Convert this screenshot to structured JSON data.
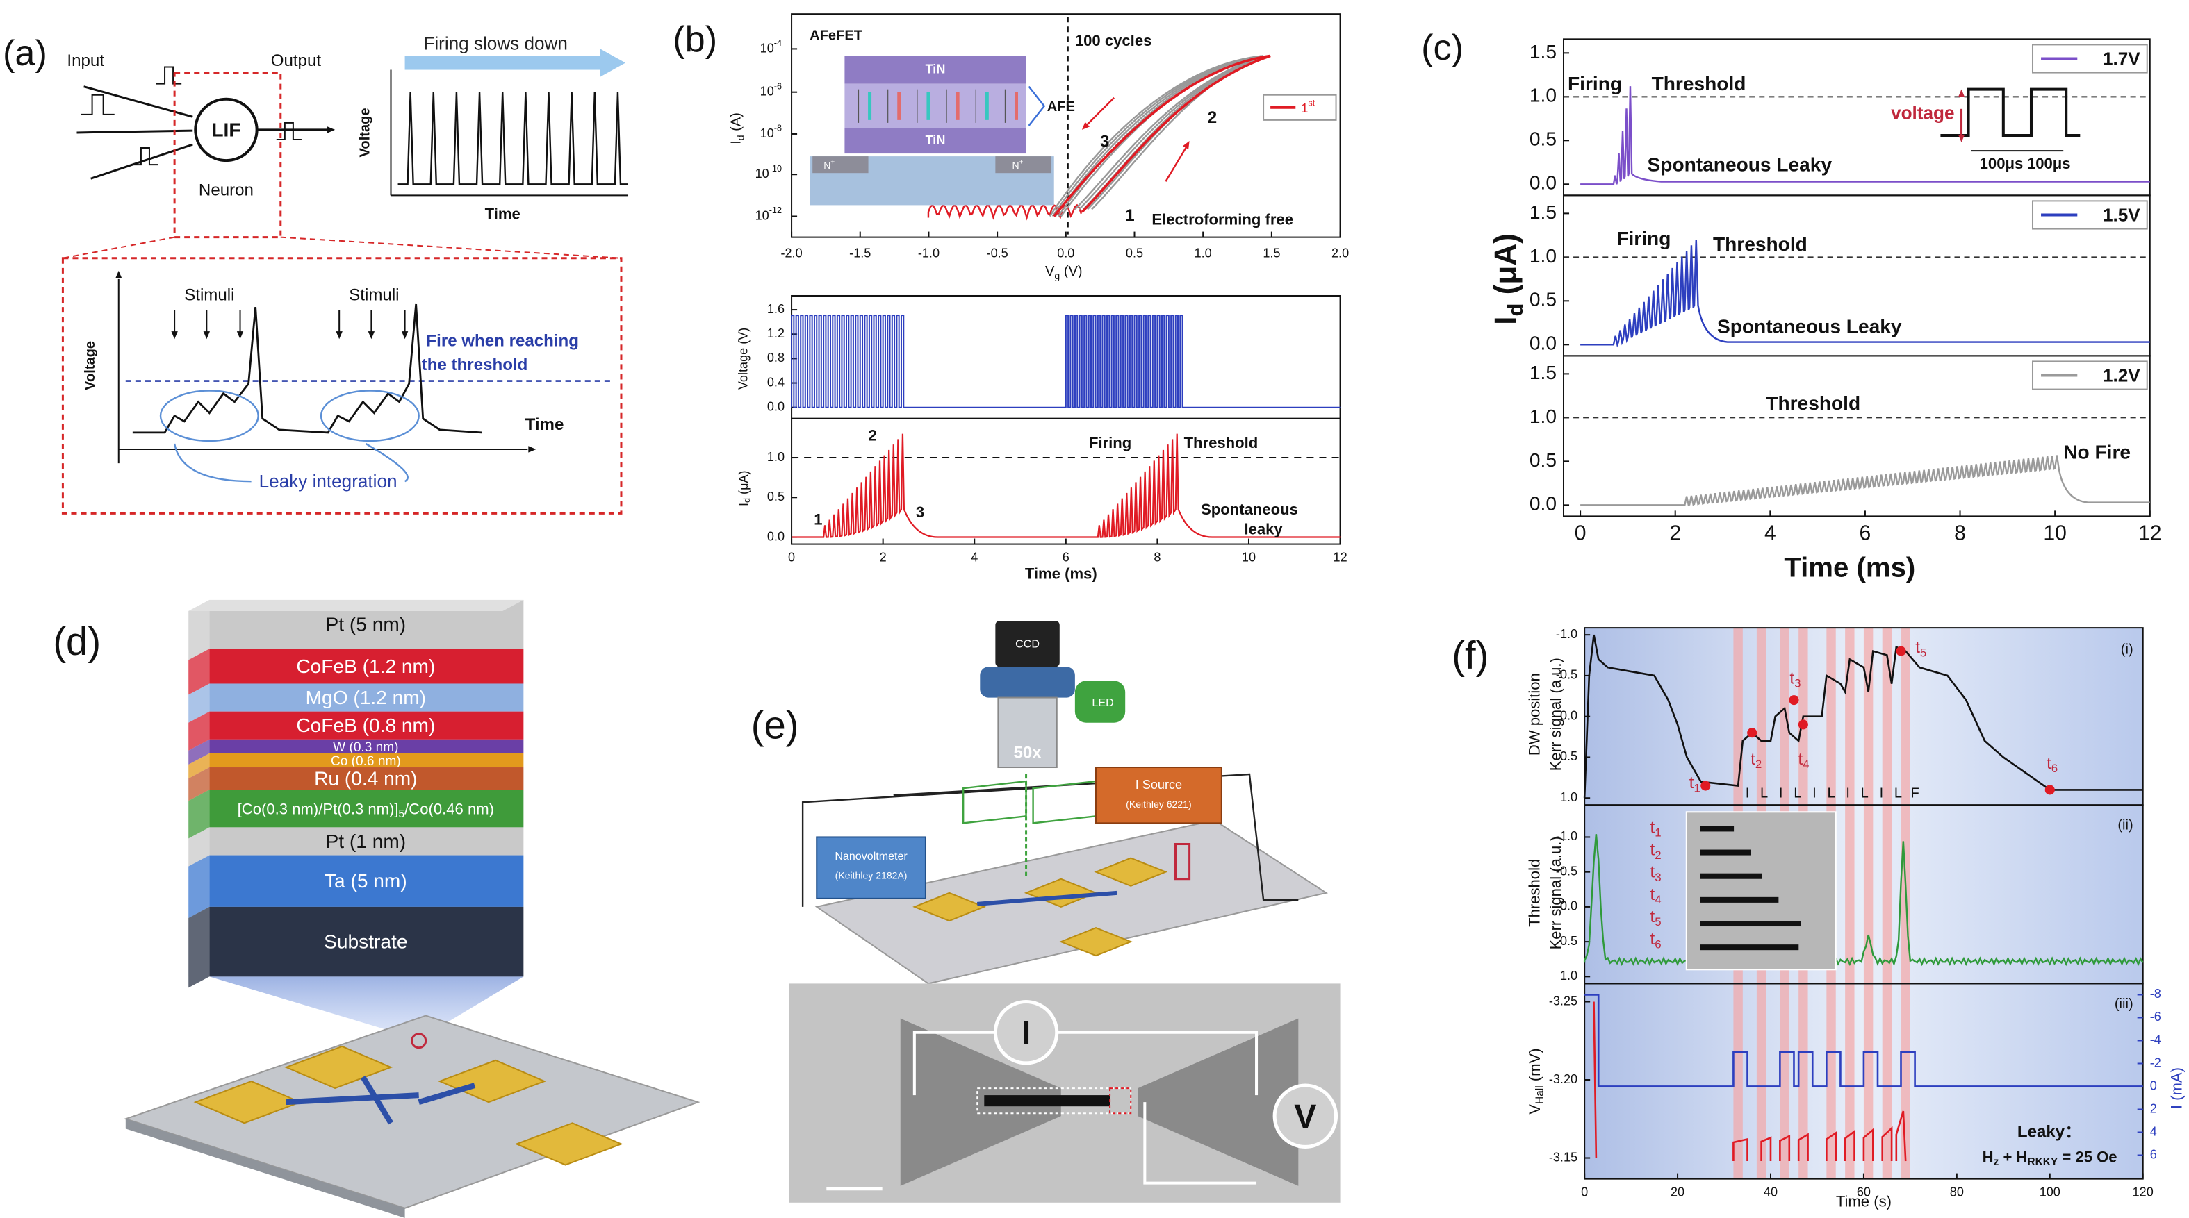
{
  "a": {
    "label": "(a)",
    "input": "Input",
    "output": "Output",
    "lif": "LIF",
    "neuron": "Neuron",
    "firing": "Firing slows down",
    "voltage": "Voltage",
    "time": "Time",
    "stimuli": [
      "Stimuli",
      "Stimuli"
    ],
    "fire": [
      "Fire when reaching",
      "the threshold"
    ],
    "voltage2": "Voltage",
    "time2": "Time",
    "leaky": "Leaky integration"
  },
  "b": {
    "label": "(b)",
    "top": {
      "xticks": [
        "-2.0",
        "-1.5",
        "-1.0",
        "-0.5",
        "0.0",
        "0.5",
        "1.0",
        "1.5",
        "2.0"
      ],
      "ybase": "10",
      "yexp": [
        "-4",
        "-6",
        "-8",
        "-10",
        "-12"
      ],
      "xlabel": {
        "main": "V",
        "sub": "g",
        "unit": " (V)"
      },
      "ylabel": {
        "main": "I",
        "sub": "d",
        "unit": " (A)"
      },
      "afefet": "AFeFET",
      "tin": [
        "TiN",
        "TiN"
      ],
      "afe": "AFE",
      "n": "N",
      "nsup": "+",
      "cycles": "100 cycles",
      "legend": {
        "main": "1",
        "sup": "st"
      },
      "curve_labels": [
        "1",
        "2",
        "3"
      ],
      "electro": "Electroforming free"
    },
    "mid": {
      "yticks": [
        "0.0",
        "0.4",
        "0.8",
        "1.2",
        "1.6"
      ],
      "ylabel": "Voltage (V)"
    },
    "bot": {
      "yticks": [
        "0.0",
        "0.5",
        "1.0"
      ],
      "xticks": [
        "0",
        "2",
        "4",
        "6",
        "8",
        "10",
        "12"
      ],
      "xlabel": "Time (ms)",
      "ylabel": {
        "main": "I",
        "sub": "d",
        "unit": " (μA)"
      },
      "labels": [
        "1",
        "2",
        "3"
      ],
      "firing": "Firing",
      "threshold": "Threshold",
      "spont": [
        "Spontaneous",
        "leaky"
      ]
    }
  },
  "c": {
    "label": "(c)",
    "yticks": [
      "0.0",
      "0.5",
      "1.0",
      "1.5"
    ],
    "xticks": [
      "0",
      "2",
      "4",
      "6",
      "8",
      "10",
      "12"
    ],
    "xlabel": "Time (ms)",
    "ylabel": {
      "main": "I",
      "sub": "d",
      "unit": " (μA)"
    },
    "legends": [
      "1.7V",
      "1.5V",
      "1.2V"
    ],
    "firing": [
      "Firing",
      "Firing"
    ],
    "threshold": [
      "Threshold",
      "Threshold",
      "Threshold"
    ],
    "spont": [
      "Spontaneous Leaky",
      "Spontaneous Leaky"
    ],
    "voltage": "voltage",
    "us": [
      "100μs",
      "100μs"
    ],
    "nofire": "No Fire"
  },
  "d": {
    "label": "(d)",
    "layers": [
      "Pt (5 nm)",
      "CoFeB (1.2 nm)",
      "MgO (1.2 nm)",
      "CoFeB (0.8 nm)",
      "W (0.3 nm)",
      "Co (0.6 nm)",
      "Ru (0.4 nm)",
      {
        "a": "[Co(0.3 nm)/Pt(0.3 nm)]",
        "sub": "5",
        "b": "/Co(0.46 nm)"
      },
      "Pt (1 nm)",
      "Ta (5 nm)",
      "Substrate"
    ]
  },
  "e": {
    "label": "(e)",
    "ccd": "CCD",
    "led": "LED",
    "mag": "50x",
    "isource": [
      "I Source",
      "(Keithley 6221)"
    ],
    "nano": [
      "Nanovoltmeter",
      "(Keithley 2182A)"
    ],
    "i": "I",
    "v": "V"
  },
  "f": {
    "label": "(f)",
    "xticks": [
      "0",
      "20",
      "40",
      "60",
      "80",
      "100",
      "120"
    ],
    "xlabel": "Time (s)",
    "p1": {
      "yticks": [
        "-1.0",
        "-0.5",
        "0.0",
        "0.5",
        "1.0"
      ],
      "ylabel": [
        "DW position",
        "Kerr signal (a.u.)"
      ],
      "tag": "(i)",
      "t": "t",
      "tsubs": [
        "1",
        "2",
        "3",
        "4",
        "5",
        "6"
      ],
      "seq": [
        "I",
        "L",
        "I",
        "L",
        "I",
        "L",
        "I",
        "L",
        "I",
        "L",
        "F"
      ]
    },
    "p2": {
      "yticks": [
        "-1.0",
        "-0.5",
        "0.0",
        "0.5",
        "1.0"
      ],
      "ylabel": [
        "Threshold",
        "Kerr signal (a.u.)"
      ],
      "tag": "(ii)",
      "t": "t",
      "tsubs": [
        "1",
        "2",
        "3",
        "4",
        "5",
        "6"
      ]
    },
    "p3": {
      "yticks": [
        "-3.25",
        "-3.20",
        "-3.15"
      ],
      "y2ticks": [
        "-8",
        "-6",
        "-4",
        "-2",
        "0",
        "2",
        "4",
        "6"
      ],
      "ylabel": {
        "main": "V",
        "sub": "Hall",
        "unit": " (mV)"
      },
      "y2label": "I (mA)",
      "tag": "(iii)",
      "leaky": "Leaky：",
      "field": {
        "h1": "H",
        "s1": "z",
        "mid": " + H",
        "s2": "RKKY",
        "end": " = 25 Oe"
      }
    }
  }
}
